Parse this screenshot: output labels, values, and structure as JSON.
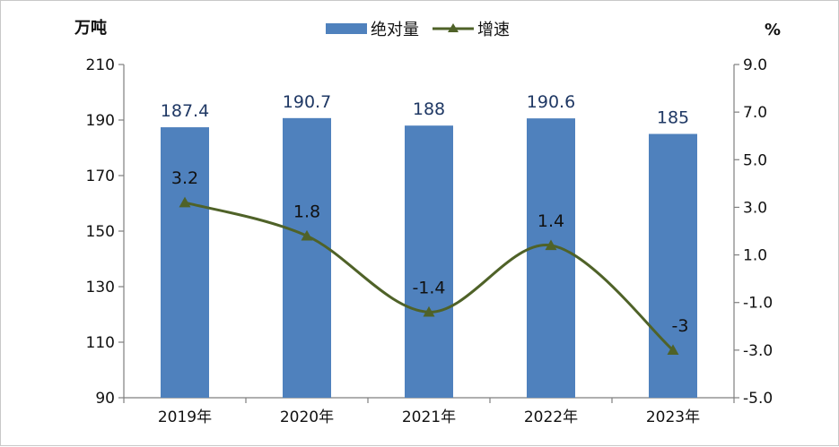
{
  "chart_data": {
    "type": "bar",
    "title": "",
    "categories": [
      "2019年",
      "2020年",
      "2021年",
      "2022年",
      "2023年"
    ],
    "series": [
      {
        "name": "绝对量",
        "type": "bar",
        "axis": "left",
        "values": [
          187.4,
          190.7,
          188,
          190.6,
          185
        ],
        "labels": [
          "187.4",
          "190.7",
          "188",
          "190.6",
          "185"
        ],
        "color": "#4f81bd"
      },
      {
        "name": "增速",
        "type": "line",
        "axis": "right",
        "values": [
          3.2,
          1.8,
          -1.4,
          1.4,
          -3
        ],
        "labels": [
          "3.2",
          "1.8",
          "-1.4",
          "1.4",
          "-3"
        ],
        "color": "#4f6228",
        "marker": "triangle",
        "smooth": true
      }
    ],
    "y_left": {
      "label": "万吨",
      "min": 90,
      "max": 210,
      "ticks": [
        "90",
        "110",
        "130",
        "150",
        "170",
        "190",
        "210"
      ]
    },
    "y_right": {
      "label": "%",
      "min": -5,
      "max": 9,
      "ticks": [
        "-5.0",
        "-3.0",
        "-1.0",
        "1.0",
        "3.0",
        "5.0",
        "7.0",
        "9.0"
      ]
    },
    "legend_position": "top-center",
    "grid": false
  }
}
